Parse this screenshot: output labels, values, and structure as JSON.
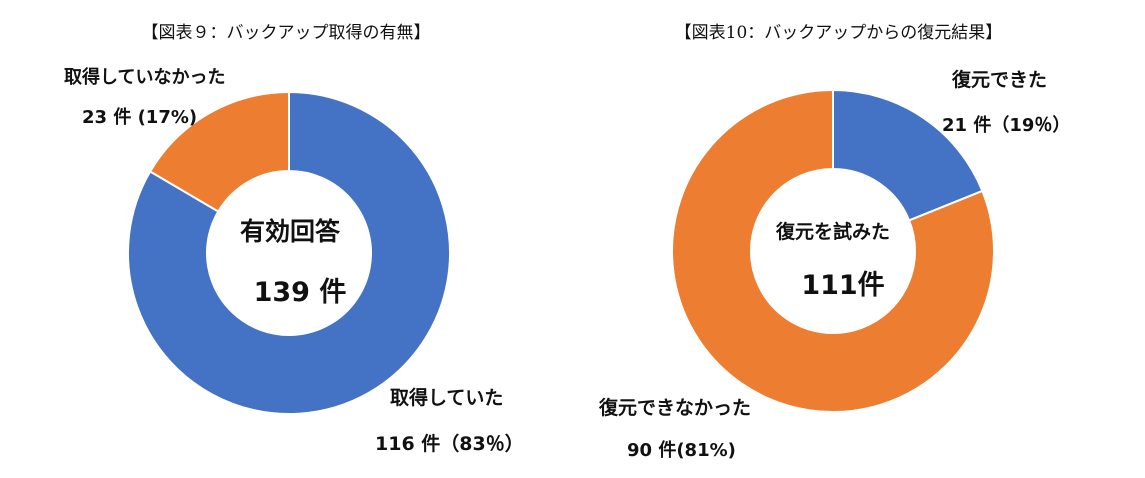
{
  "chart_data": [
    {
      "type": "pie",
      "title": "【図表９：バックアップ取得の有無】",
      "center_label": "有効回答",
      "center_value": "139 件",
      "categories": [
        "取得していた",
        "取得していなかった"
      ],
      "values": [
        116,
        23
      ],
      "data_labels": [
        "116 件（83％）",
        "23 件 (17%)"
      ],
      "colors": [
        "#4472C4",
        "#ED7D31"
      ]
    },
    {
      "type": "pie",
      "title": "【図表10：バックアップからの復元結果】",
      "center_label": "復元を試みた",
      "center_value": "111件",
      "categories": [
        "復元できた",
        "復元できなかった"
      ],
      "values": [
        21,
        90
      ],
      "data_labels": [
        "21 件（19％）",
        "90 件(81%)"
      ],
      "colors": [
        "#4472C4",
        "#ED7D31"
      ]
    }
  ]
}
